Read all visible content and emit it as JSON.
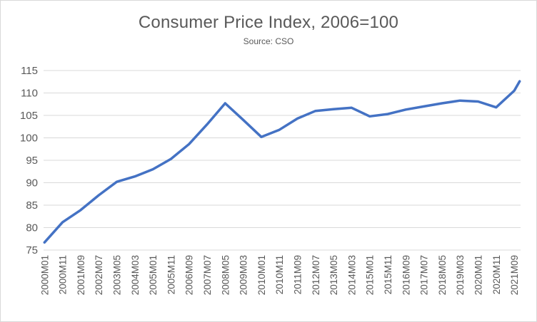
{
  "chart_data": {
    "type": "line",
    "title": "Consumer  Price Index, 2006=100",
    "subtitle": "Source: CSO",
    "xlabel": "",
    "ylabel": "",
    "ylim": [
      75,
      115
    ],
    "y_ticks": [
      75,
      80,
      85,
      90,
      95,
      100,
      105,
      110,
      115
    ],
    "grid": "horizontal",
    "legend": "none",
    "line_color": "#4472c4",
    "grid_color": "#d9d9d9",
    "text_color": "#595959",
    "x_tick_labels": [
      "2000M01",
      "2000M11",
      "2001M09",
      "2002M07",
      "2003M05",
      "2004M03",
      "2005M01",
      "2005M11",
      "2006M09",
      "2007M07",
      "2008M05",
      "2009M03",
      "2010M01",
      "2010M11",
      "2011M09",
      "2012M07",
      "2013M05",
      "2014M03",
      "2015M01",
      "2015M11",
      "2016M09",
      "2017M07",
      "2018M05",
      "2019M03",
      "2020M01",
      "2020M11",
      "2021M09"
    ],
    "series": [
      {
        "x": [
          "2000M01",
          "2000M11",
          "2001M09",
          "2002M07",
          "2003M05",
          "2004M03",
          "2005M01",
          "2005M11",
          "2006M09",
          "2007M07",
          "2008M05",
          "2009M03",
          "2010M01",
          "2010M11",
          "2011M09",
          "2012M07",
          "2013M05",
          "2014M03",
          "2015M01",
          "2015M11",
          "2016M09",
          "2017M07",
          "2018M05",
          "2019M03",
          "2020M01",
          "2020M11",
          "2021M09",
          "2021M12"
        ],
        "values": [
          76.7,
          81.2,
          83.9,
          87.2,
          90.2,
          91.4,
          93.0,
          95.3,
          98.6,
          103.0,
          107.7,
          104.0,
          100.2,
          101.8,
          104.3,
          106.0,
          106.4,
          106.7,
          104.8,
          105.3,
          106.3,
          107.0,
          107.7,
          108.3,
          108.1,
          106.8,
          110.5,
          112.6
        ]
      }
    ]
  }
}
